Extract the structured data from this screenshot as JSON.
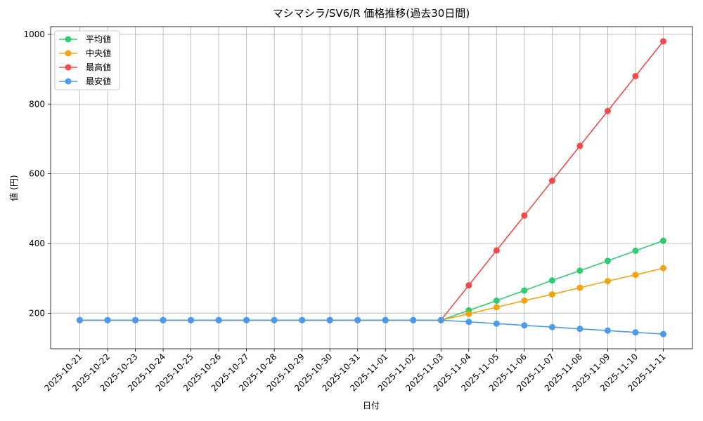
{
  "chart_data": {
    "type": "line",
    "title": "マシマシラ/SV6/R 価格推移(過去30日間)",
    "x_label": "日付",
    "y_label": "値 (円)",
    "categories": [
      "2025-10-21",
      "2025-10-22",
      "2025-10-23",
      "2025-10-24",
      "2025-10-25",
      "2025-10-26",
      "2025-10-27",
      "2025-10-28",
      "2025-10-29",
      "2025-10-30",
      "2025-10-31",
      "2025-11-01",
      "2025-11-02",
      "2025-11-03",
      "2025-11-04",
      "2025-11-05",
      "2025-11-06",
      "2025-11-07",
      "2025-11-08",
      "2025-11-09",
      "2025-11-10",
      "2025-11-11"
    ],
    "series": [
      {
        "name": "平均値",
        "color": "#2ecc71",
        "values": [
          180,
          180,
          180,
          180,
          180,
          180,
          180,
          180,
          180,
          180,
          180,
          180,
          180,
          180,
          208,
          236,
          265,
          294,
          322,
          350,
          379,
          408
        ]
      },
      {
        "name": "中央値",
        "color": "#f5a30f",
        "values": [
          180,
          180,
          180,
          180,
          180,
          180,
          180,
          180,
          180,
          180,
          180,
          180,
          180,
          180,
          198,
          217,
          236,
          254,
          273,
          292,
          310,
          329
        ]
      },
      {
        "name": "最高値",
        "color": "#ef4b4b",
        "values": [
          180,
          180,
          180,
          180,
          180,
          180,
          180,
          180,
          180,
          180,
          180,
          180,
          180,
          180,
          280,
          380,
          480,
          580,
          680,
          780,
          880,
          980
        ]
      },
      {
        "name": "最安値",
        "color": "#4a9af0",
        "values": [
          180,
          180,
          180,
          180,
          180,
          180,
          180,
          180,
          180,
          180,
          180,
          180,
          180,
          180,
          175,
          170,
          165,
          160,
          155,
          150,
          145,
          140
        ]
      }
    ],
    "ylim": [
      98,
      1022
    ],
    "yticks": [
      200,
      400,
      600,
      800,
      1000
    ],
    "grid": true,
    "legend": "upper-left"
  }
}
